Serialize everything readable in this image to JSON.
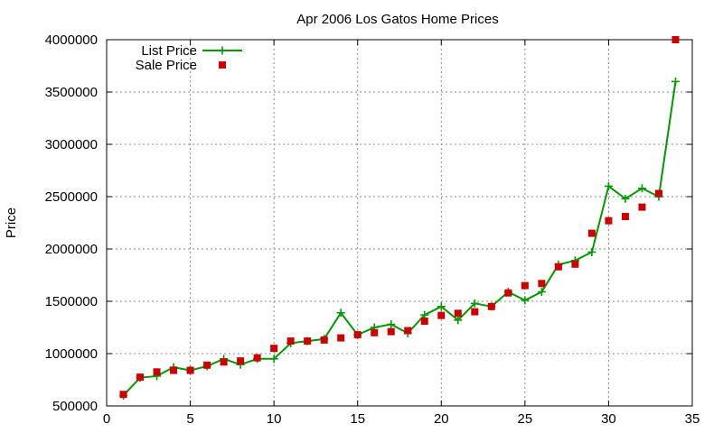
{
  "chart_data": {
    "type": "line",
    "title": "Apr 2006 Los Gatos Home Prices",
    "xlabel": "",
    "ylabel": "Price",
    "xlim": [
      0,
      35
    ],
    "ylim": [
      500000,
      4000000
    ],
    "xticks": [
      0,
      5,
      10,
      15,
      20,
      25,
      30,
      35
    ],
    "yticks": [
      500000,
      1000000,
      1500000,
      2000000,
      2500000,
      3000000,
      3500000,
      4000000
    ],
    "grid": true,
    "legend_position": "top-left",
    "x": [
      1,
      2,
      3,
      4,
      5,
      6,
      7,
      8,
      9,
      10,
      11,
      12,
      13,
      14,
      15,
      16,
      17,
      18,
      19,
      20,
      21,
      22,
      23,
      24,
      25,
      26,
      27,
      28,
      29,
      30,
      31,
      32,
      33,
      34
    ],
    "series": [
      {
        "name": "List Price",
        "style": "line-with-plus-markers",
        "color": "#009900",
        "values": [
          600000,
          770000,
          785000,
          870000,
          840000,
          880000,
          950000,
          895000,
          950000,
          950000,
          1100000,
          1120000,
          1140000,
          1390000,
          1180000,
          1250000,
          1280000,
          1195000,
          1370000,
          1450000,
          1320000,
          1480000,
          1450000,
          1590000,
          1510000,
          1590000,
          1850000,
          1890000,
          1970000,
          2600000,
          2480000,
          2580000,
          2500000,
          3600000
        ]
      },
      {
        "name": "Sale Price",
        "style": "square-markers",
        "color": "#cc0000",
        "values": [
          610000,
          775000,
          825000,
          840000,
          840000,
          890000,
          920000,
          930000,
          960000,
          1050000,
          1120000,
          1120000,
          1130000,
          1150000,
          1180000,
          1200000,
          1210000,
          1220000,
          1310000,
          1365000,
          1385000,
          1400000,
          1450000,
          1580000,
          1650000,
          1670000,
          1830000,
          1855000,
          2150000,
          2270000,
          2310000,
          2400000,
          2530000,
          4000000
        ]
      }
    ]
  }
}
